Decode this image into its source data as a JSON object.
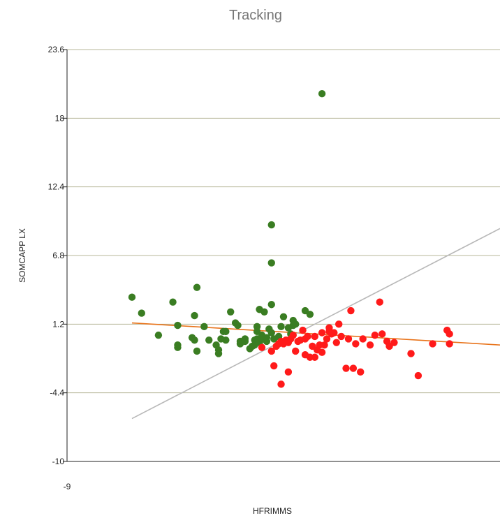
{
  "chart_data": {
    "type": "scatter",
    "title": "Tracking",
    "xlabel": "HFRIMMS",
    "ylabel": "SOMCAPP LX",
    "xlim": [
      -9,
      9
    ],
    "ylim": [
      -10,
      23.6
    ],
    "x_ticks": [
      "-9"
    ],
    "y_ticks": [
      "-10",
      "-4.4",
      "1.2",
      "6.8",
      "12.4",
      "18",
      "23.6"
    ],
    "y_tick_values": [
      -10,
      -4.4,
      1.2,
      6.8,
      12.4,
      18,
      23.6
    ],
    "grid": true,
    "legend": "none",
    "colors": {
      "series_green": "#3a7d22",
      "series_red": "#ff1a1a",
      "fit_line": "#e8731a",
      "reference_line": "#b8b8b8",
      "grid": "#b7b79a",
      "axis": "#222222"
    },
    "series": [
      {
        "color": "#3a7d22",
        "points": [
          [
            -6.3,
            3.4
          ],
          [
            -5.9,
            2.1
          ],
          [
            -5.2,
            0.3
          ],
          [
            -4.6,
            3.0
          ],
          [
            -4.4,
            -0.7
          ],
          [
            -4.4,
            -0.5
          ],
          [
            -4.4,
            1.1
          ],
          [
            -3.8,
            0.1
          ],
          [
            -3.7,
            -0.1
          ],
          [
            -3.7,
            1.9
          ],
          [
            -3.6,
            -1.0
          ],
          [
            -3.6,
            4.2
          ],
          [
            -3.3,
            1.0
          ],
          [
            -3.1,
            -0.1
          ],
          [
            -2.8,
            -0.5
          ],
          [
            -2.7,
            -1.2
          ],
          [
            -2.7,
            -0.9
          ],
          [
            -2.6,
            0.0
          ],
          [
            -2.5,
            0.6
          ],
          [
            -2.4,
            0.6
          ],
          [
            -2.4,
            -0.1
          ],
          [
            -2.2,
            2.2
          ],
          [
            -2.0,
            1.3
          ],
          [
            -1.9,
            1.1
          ],
          [
            -1.8,
            -0.2
          ],
          [
            -1.8,
            -0.4
          ],
          [
            -1.6,
            -0.2
          ],
          [
            -1.6,
            0.0
          ],
          [
            -1.4,
            -0.8
          ],
          [
            -1.3,
            -0.6
          ],
          [
            -1.2,
            -0.5
          ],
          [
            -1.2,
            -0.1
          ],
          [
            -1.1,
            0.0
          ],
          [
            -1.1,
            0.6
          ],
          [
            -1.1,
            1.0
          ],
          [
            -1.0,
            -0.3
          ],
          [
            -1.0,
            2.4
          ],
          [
            -0.9,
            0.0
          ],
          [
            -0.9,
            0.3
          ],
          [
            -0.8,
            2.2
          ],
          [
            -0.7,
            -0.2
          ],
          [
            -0.7,
            0.1
          ],
          [
            -0.6,
            0.8
          ],
          [
            -0.5,
            0.5
          ],
          [
            -0.5,
            2.8
          ],
          [
            -0.5,
            6.2
          ],
          [
            -0.5,
            9.3
          ],
          [
            -0.4,
            0.0
          ],
          [
            -0.2,
            0.2
          ],
          [
            -0.1,
            1.0
          ],
          [
            0.0,
            1.8
          ],
          [
            0.2,
            0.9
          ],
          [
            0.3,
            0.4
          ],
          [
            0.4,
            1.1
          ],
          [
            0.4,
            1.5
          ],
          [
            0.5,
            1.2
          ],
          [
            0.9,
            2.3
          ],
          [
            1.1,
            2.0
          ],
          [
            1.6,
            20.0
          ]
        ]
      },
      {
        "color": "#ff1a1a",
        "points": [
          [
            -0.9,
            -0.7
          ],
          [
            -0.5,
            -1.0
          ],
          [
            -0.4,
            -2.2
          ],
          [
            -0.3,
            -0.6
          ],
          [
            -0.2,
            -0.4
          ],
          [
            -0.1,
            -3.7
          ],
          [
            -0.1,
            -0.2
          ],
          [
            0.0,
            -0.4
          ],
          [
            0.1,
            -0.1
          ],
          [
            0.2,
            -2.7
          ],
          [
            0.2,
            -0.3
          ],
          [
            0.3,
            0.0
          ],
          [
            0.4,
            0.3
          ],
          [
            0.5,
            -1.0
          ],
          [
            0.6,
            -0.2
          ],
          [
            0.7,
            -0.1
          ],
          [
            0.8,
            0.7
          ],
          [
            0.9,
            -1.3
          ],
          [
            0.9,
            0.0
          ],
          [
            1.0,
            0.2
          ],
          [
            1.1,
            -1.5
          ],
          [
            1.2,
            -0.6
          ],
          [
            1.3,
            -1.5
          ],
          [
            1.3,
            0.2
          ],
          [
            1.4,
            -0.9
          ],
          [
            1.5,
            -0.5
          ],
          [
            1.6,
            -1.1
          ],
          [
            1.6,
            0.5
          ],
          [
            1.7,
            -0.5
          ],
          [
            1.8,
            0.0
          ],
          [
            1.9,
            0.6
          ],
          [
            1.9,
            0.9
          ],
          [
            2.0,
            0.4
          ],
          [
            2.1,
            0.5
          ],
          [
            2.2,
            -0.3
          ],
          [
            2.3,
            1.2
          ],
          [
            2.4,
            0.2
          ],
          [
            2.6,
            -2.4
          ],
          [
            2.7,
            0.0
          ],
          [
            2.8,
            2.3
          ],
          [
            2.9,
            -2.4
          ],
          [
            3.0,
            -0.4
          ],
          [
            3.2,
            -2.7
          ],
          [
            3.3,
            0.0
          ],
          [
            3.6,
            -0.5
          ],
          [
            3.8,
            0.3
          ],
          [
            4.0,
            3.0
          ],
          [
            4.1,
            0.4
          ],
          [
            4.3,
            -0.2
          ],
          [
            4.4,
            -0.6
          ],
          [
            4.6,
            -0.3
          ],
          [
            5.3,
            -1.2
          ],
          [
            5.6,
            -3.0
          ],
          [
            6.2,
            -0.4
          ],
          [
            6.8,
            0.7
          ],
          [
            6.9,
            -0.4
          ],
          [
            6.9,
            0.4
          ]
        ]
      }
    ],
    "lines": [
      {
        "color": "#e8731a",
        "x": [
          -6.3,
          9
        ],
        "y": [
          1.3,
          -0.5
        ]
      },
      {
        "color": "#b8b8b8",
        "x": [
          -6.3,
          9
        ],
        "y": [
          -6.5,
          9.0
        ]
      }
    ]
  }
}
